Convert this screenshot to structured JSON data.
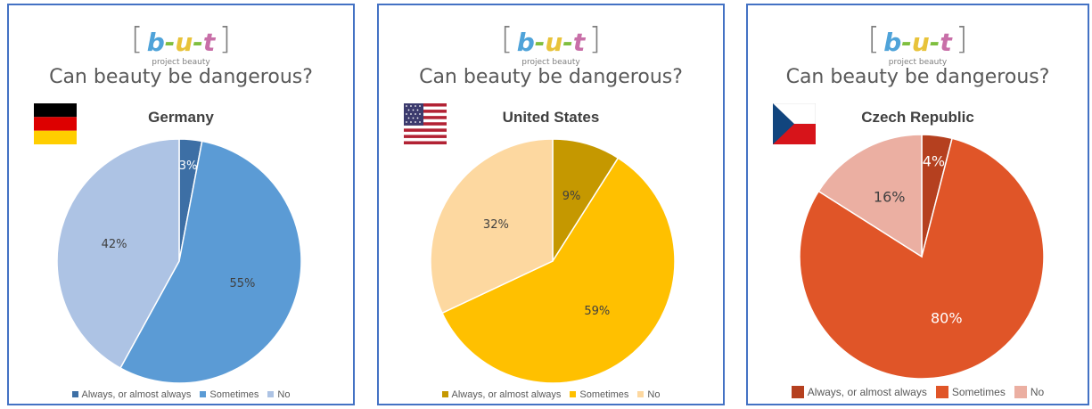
{
  "logo": {
    "open": "[",
    "b": "b",
    "dash1": "-",
    "u": "u",
    "dash2": "-",
    "t": "t",
    "close": "]",
    "sub": "project beauty"
  },
  "logo_colors": {
    "b": "#4fa3d9",
    "dash": "#7fbf3f",
    "u": "#e8c33a",
    "t": "#c86fa8"
  },
  "question": "Can beauty be dangerous?",
  "chart_data": [
    {
      "type": "pie",
      "title": "Germany",
      "flag": "germany-flag",
      "categories": [
        "Always, or almost always",
        "Sometimes",
        "No"
      ],
      "values": [
        3,
        55,
        42
      ],
      "labels": [
        "3%",
        "55%",
        "42%"
      ],
      "colors": [
        "#3d6fa5",
        "#5b9bd5",
        "#adc3e4"
      ],
      "label_color": [
        "#ffffff",
        "#404040",
        "#404040"
      ]
    },
    {
      "type": "pie",
      "title": "United States",
      "flag": "usa-flag",
      "categories": [
        "Always, or almost always",
        "Sometimes",
        "No"
      ],
      "values": [
        9,
        59,
        32
      ],
      "labels": [
        "9%",
        "59%",
        "32%"
      ],
      "colors": [
        "#c59800",
        "#ffc000",
        "#fdd8a0"
      ],
      "label_color": [
        "#404040",
        "#404040",
        "#404040"
      ]
    },
    {
      "type": "pie",
      "title": "Czech Republic",
      "flag": "czech-flag",
      "categories": [
        "Always, or almost always",
        "Sometimes",
        "No"
      ],
      "values": [
        4,
        80,
        16
      ],
      "labels": [
        "4%",
        "80%",
        "16%"
      ],
      "colors": [
        "#b5401f",
        "#e05528",
        "#ebafa2"
      ],
      "label_color": [
        "#ffffff",
        "#ffffff",
        "#404040"
      ]
    }
  ]
}
